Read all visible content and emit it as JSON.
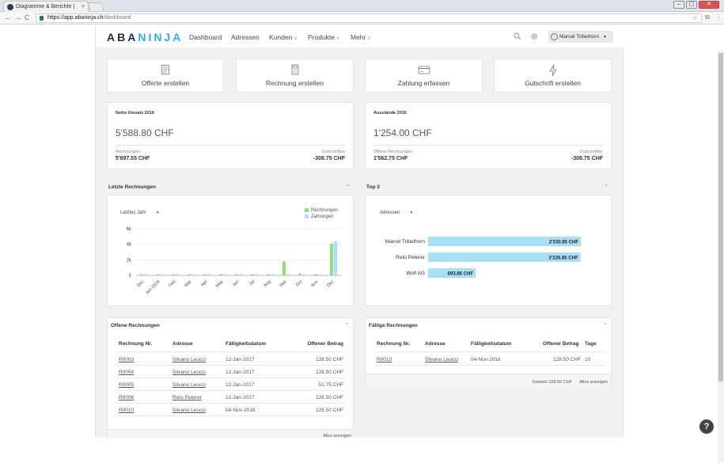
{
  "browser": {
    "tab_title": "Diagramme & Berichte |",
    "tab_close": "×",
    "url_host": "https://app.abaninja.ch",
    "url_path": "/dashboard",
    "back": "←",
    "forward": "→",
    "reload": "C",
    "star": "☆",
    "menu": "⋮",
    "win_min": "–",
    "win_max": "▢",
    "win_close": "✕"
  },
  "app": {
    "logo_a": "ABA",
    "logo_b": "NINJA",
    "nav": [
      {
        "label": "Dashboard"
      },
      {
        "label": "Adressen"
      },
      {
        "label": "Kunden"
      },
      {
        "label": "Produkte"
      },
      {
        "label": "Mehr"
      }
    ],
    "user": "Marcel Tribelhorn"
  },
  "actions": [
    {
      "label": "Offerte erstellen",
      "icon": "document-icon"
    },
    {
      "label": "Rechnung erstellen",
      "icon": "calculator-icon"
    },
    {
      "label": "Zahlung erfassen",
      "icon": "credit-card-icon"
    },
    {
      "label": "Gutschrift erstellen",
      "icon": "lightning-icon"
    }
  ],
  "stats": [
    {
      "title": "Netto Umsatz 2016",
      "value": "5'588.80 CHF",
      "left_label": "Rechnungen",
      "left_value": "5'897.55 CHF",
      "right_label": "Gutschriften",
      "right_value": "-308.75 CHF"
    },
    {
      "title": "Ausstände 2016",
      "value": "1'254.00 CHF",
      "left_label": "Offene Rechnungen",
      "left_value": "1'562.75 CHF",
      "right_label": "Gutschriften",
      "right_value": "-308.75 CHF"
    }
  ],
  "letzte": {
    "title": "Letzte Rechnungen",
    "period": "Letztes Jahr",
    "legend_a": "Rechnungen",
    "legend_b": "Zahlungen"
  },
  "top3": {
    "title": "Top 3",
    "filter": "Adressen"
  },
  "colors": {
    "rechnungen": "#8ee07a",
    "zahlungen": "#a7e0f7",
    "top_bar": "#a7e0f7"
  },
  "chart_data": [
    {
      "type": "bar",
      "categories": [
        "Dec",
        "Jan 2016",
        "Feb",
        "Mar",
        "Apr",
        "May",
        "Jun",
        "Jul",
        "Aug",
        "Sep",
        "Oct",
        "Nov",
        "Dec"
      ],
      "series": [
        {
          "name": "Rechnungen",
          "values": [
            0,
            0,
            0,
            0,
            0,
            0,
            0,
            0,
            0,
            1800,
            250,
            0,
            4100
          ]
        },
        {
          "name": "Zahlungen",
          "values": [
            0,
            0,
            0,
            0,
            0,
            0,
            0,
            0,
            0,
            0,
            0,
            0,
            4400
          ]
        }
      ],
      "yticks": [
        "0",
        "2k",
        "4k",
        "6k"
      ],
      "ylim": [
        0,
        6000
      ]
    },
    {
      "type": "bar",
      "orientation": "horizontal",
      "categories": [
        "Marcel Tribelhorn",
        "Reto Peterer",
        "Wolf AG"
      ],
      "values": [
        2230.85,
        2226.85,
        693.85
      ],
      "labels": [
        "2'230.85 CHF",
        "2'226.85 CHF",
        "693.85 CHF"
      ]
    }
  ],
  "offene": {
    "title": "Offene Rechnungen",
    "headers": [
      "Rechnung Nr.",
      "Adresse",
      "Fälligkeitsdatum",
      "Offener Betrag"
    ],
    "rows": [
      [
        "R0003",
        "Silvano Leucci",
        "12-Jan-2017",
        "128.50 CHF"
      ],
      [
        "R0004",
        "Silvano Leucci",
        "12-Jan-2017",
        "128.50 CHF"
      ],
      [
        "R0005",
        "Silvano Leucci",
        "12-Jan-2017",
        "51.75 CHF"
      ],
      [
        "R0006",
        "Reto Peterer",
        "12-Jan-2017",
        "128.50 CHF"
      ],
      [
        "R0010",
        "Silvano Leucci",
        "04-Nov-2016",
        "128.50 CHF"
      ]
    ],
    "footer": "Alles anzeigen"
  },
  "faellige": {
    "title": "Fällige Rechnungen",
    "headers": [
      "Rechnung Nr.",
      "Adresse",
      "Fälligkeitsdatum",
      "Offener Betrag",
      "Tage"
    ],
    "rows": [
      [
        "R0010",
        "Silvano Leucci",
        "04-Nov-2016",
        "128.50 CHF",
        "10"
      ]
    ],
    "total": "Gesamt 128.50 CHF",
    "footer": "Alles anzeigen"
  },
  "help": "?"
}
